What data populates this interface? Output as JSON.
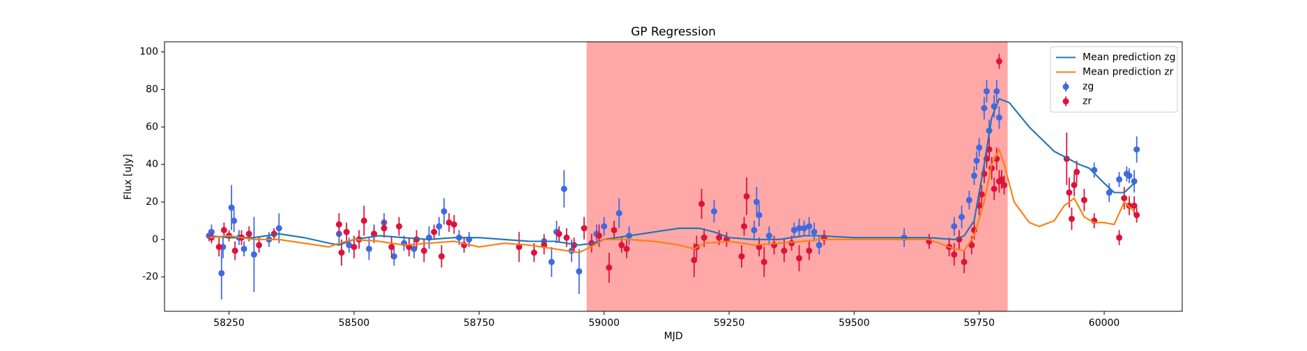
{
  "chart_data": {
    "type": "scatter",
    "title": "GP Regression",
    "xlabel": "MJD",
    "ylabel": "Flux [uJy]",
    "xlim": [
      58121,
      60156
    ],
    "ylim": [
      -38.3,
      105.4
    ],
    "xticks": [
      58250,
      58500,
      58750,
      59000,
      59250,
      59500,
      59750,
      60000
    ],
    "yticks": [
      -20,
      0,
      20,
      40,
      60,
      80,
      100
    ],
    "grid": false,
    "legend": "upper right",
    "span": {
      "x": [
        58965,
        59807
      ],
      "color": "#ff5a5a"
    },
    "series": [
      {
        "name": "Mean prediction zg",
        "kind": "line",
        "color": "#1f77b4",
        "x": [
          58210,
          58250,
          58300,
          58350,
          58400,
          58450,
          58470,
          58500,
          58550,
          58600,
          58650,
          58700,
          58750,
          58800,
          58850,
          58900,
          58950,
          58980,
          59000,
          59050,
          59100,
          59150,
          59190,
          59220,
          59250,
          59300,
          59350,
          59400,
          59430,
          59500,
          59600,
          59650,
          59700,
          59720,
          59740,
          59760,
          59775,
          59790,
          59810,
          59850,
          59900,
          59950,
          59970,
          60000,
          60020,
          60040,
          60060
        ],
        "values": [
          2,
          1,
          1,
          3,
          1,
          -2,
          -3,
          0,
          2,
          1,
          0,
          1,
          1,
          0,
          -1,
          -1,
          -3,
          -2,
          0,
          2,
          4,
          6,
          6,
          4,
          1,
          0,
          0,
          2,
          2,
          1,
          1,
          1,
          0,
          2,
          10,
          40,
          65,
          75,
          73,
          60,
          47,
          40,
          38,
          30,
          25,
          25,
          30
        ]
      },
      {
        "name": "Mean prediction zr",
        "kind": "line",
        "color": "#ff7f0e",
        "x": [
          58210,
          58250,
          58300,
          58350,
          58400,
          58450,
          58470,
          58500,
          58550,
          58600,
          58650,
          58700,
          58750,
          58800,
          58850,
          58900,
          58950,
          58980,
          59000,
          59050,
          59100,
          59150,
          59180,
          59200,
          59250,
          59300,
          59350,
          59400,
          59430,
          59500,
          59600,
          59650,
          59700,
          59720,
          59740,
          59760,
          59775,
          59790,
          59800,
          59820,
          59850,
          59870,
          59900,
          59920,
          59940,
          59960,
          59980,
          60000,
          60020,
          60040,
          60060
        ],
        "values": [
          1,
          2,
          0,
          0,
          -2,
          -4,
          -2,
          0,
          -1,
          -3,
          -2,
          -1,
          -4,
          -2,
          -3,
          -5,
          -7,
          -3,
          0,
          0,
          -1,
          -3,
          -5,
          -2,
          -1,
          -3,
          -2,
          -1,
          0,
          0,
          0,
          0,
          -5,
          -6,
          2,
          20,
          40,
          48,
          40,
          20,
          9,
          7,
          10,
          18,
          22,
          12,
          9,
          9,
          8,
          20,
          15
        ]
      },
      {
        "name": "zg",
        "kind": "errorbar",
        "color": "#4169e1",
        "x": [
          58210,
          58215,
          58235,
          58238,
          58255,
          58260,
          58270,
          58280,
          58300,
          58330,
          58350,
          58470,
          58490,
          58530,
          58540,
          58560,
          58580,
          58600,
          58620,
          58650,
          58670,
          58680,
          58710,
          58730,
          58880,
          58895,
          58905,
          58920,
          58935,
          58950,
          58985,
          59000,
          59030,
          59050,
          59220,
          59300,
          59305,
          59310,
          59330,
          59380,
          59390,
          59400,
          59410,
          59420,
          59430,
          59600,
          59700,
          59715,
          59730,
          59740,
          59745,
          59750,
          59760,
          59765,
          59770,
          59780,
          59785,
          59790,
          59980,
          60010,
          60030,
          60045,
          60050,
          60060,
          60065
        ],
        "values": [
          2,
          4,
          -18,
          -4,
          17,
          10,
          1,
          -5,
          -8,
          0,
          6,
          3,
          -3,
          -5,
          3,
          9,
          -9,
          -2,
          -5,
          1,
          7,
          15,
          1,
          0,
          -1,
          -12,
          4,
          27,
          -6,
          -17,
          3,
          7,
          14,
          2,
          15,
          5,
          20,
          13,
          2,
          5,
          6,
          6,
          7,
          4,
          -3,
          1,
          7,
          12,
          21,
          34,
          42,
          49,
          70,
          79,
          58,
          71,
          79,
          65,
          37,
          25,
          32,
          35,
          34,
          31,
          48
        ],
        "errors": [
          3,
          4,
          14,
          6,
          12,
          6,
          4,
          4,
          20,
          4,
          8,
          5,
          4,
          6,
          5,
          5,
          5,
          4,
          5,
          6,
          5,
          7,
          4,
          4,
          4,
          8,
          6,
          10,
          6,
          12,
          5,
          5,
          8,
          5,
          6,
          5,
          8,
          6,
          5,
          4,
          5,
          4,
          5,
          5,
          5,
          5,
          5,
          6,
          5,
          5,
          5,
          5,
          6,
          6,
          6,
          6,
          6,
          6,
          4,
          5,
          4,
          4,
          4,
          6,
          7
        ]
      },
      {
        "name": "zr",
        "kind": "errorbar",
        "color": "#dc143c",
        "x": [
          58215,
          58230,
          58240,
          58250,
          58262,
          58275,
          58290,
          58310,
          58340,
          58470,
          58475,
          58485,
          58500,
          58510,
          58520,
          58540,
          58560,
          58575,
          58590,
          58610,
          58625,
          58640,
          58660,
          58675,
          58690,
          58700,
          58720,
          58830,
          58860,
          58880,
          58910,
          58925,
          58940,
          58960,
          58975,
          58990,
          59010,
          59020,
          59035,
          59045,
          59180,
          59185,
          59195,
          59200,
          59230,
          59245,
          59275,
          59280,
          59285,
          59310,
          59320,
          59340,
          59360,
          59375,
          59390,
          59410,
          59440,
          59650,
          59690,
          59700,
          59710,
          59720,
          59735,
          59740,
          59750,
          59755,
          59760,
          59765,
          59770,
          59775,
          59780,
          59785,
          59790,
          59795,
          59800,
          59925,
          59930,
          59935,
          59940,
          59945,
          59960,
          59980,
          60030,
          60040,
          60050,
          60060,
          60065,
          59790
        ],
        "values": [
          1,
          -4,
          5,
          2,
          -6,
          1,
          3,
          -3,
          3,
          8,
          -7,
          4,
          -4,
          0,
          10,
          3,
          6,
          -4,
          7,
          -4,
          0,
          -6,
          4,
          -9,
          9,
          8,
          -3,
          -4,
          -7,
          -3,
          3,
          1,
          -3,
          6,
          -2,
          2,
          -15,
          5,
          -3,
          -5,
          -11,
          -4,
          19,
          1,
          1,
          0,
          -9,
          7,
          23,
          -4,
          -12,
          -3,
          -6,
          -2,
          -10,
          -6,
          1,
          -1,
          -4,
          -8,
          0,
          -12,
          -3,
          5,
          18,
          24,
          35,
          43,
          48,
          38,
          27,
          43,
          31,
          32,
          29,
          43,
          25,
          11,
          29,
          36,
          21,
          10,
          1,
          22,
          18,
          18,
          13,
          95
        ],
        "errors": [
          3,
          5,
          4,
          3,
          5,
          4,
          4,
          4,
          3,
          6,
          7,
          5,
          6,
          5,
          8,
          4,
          5,
          6,
          5,
          5,
          5,
          6,
          4,
          6,
          5,
          5,
          4,
          8,
          5,
          5,
          4,
          5,
          4,
          6,
          5,
          6,
          8,
          5,
          4,
          5,
          9,
          6,
          8,
          5,
          4,
          4,
          6,
          5,
          10,
          5,
          8,
          5,
          6,
          4,
          7,
          5,
          4,
          4,
          5,
          6,
          5,
          6,
          5,
          5,
          5,
          5,
          5,
          5,
          6,
          6,
          6,
          6,
          6,
          5,
          5,
          14,
          8,
          6,
          6,
          6,
          6,
          4,
          4,
          6,
          5,
          5,
          4,
          4
        ]
      }
    ]
  }
}
